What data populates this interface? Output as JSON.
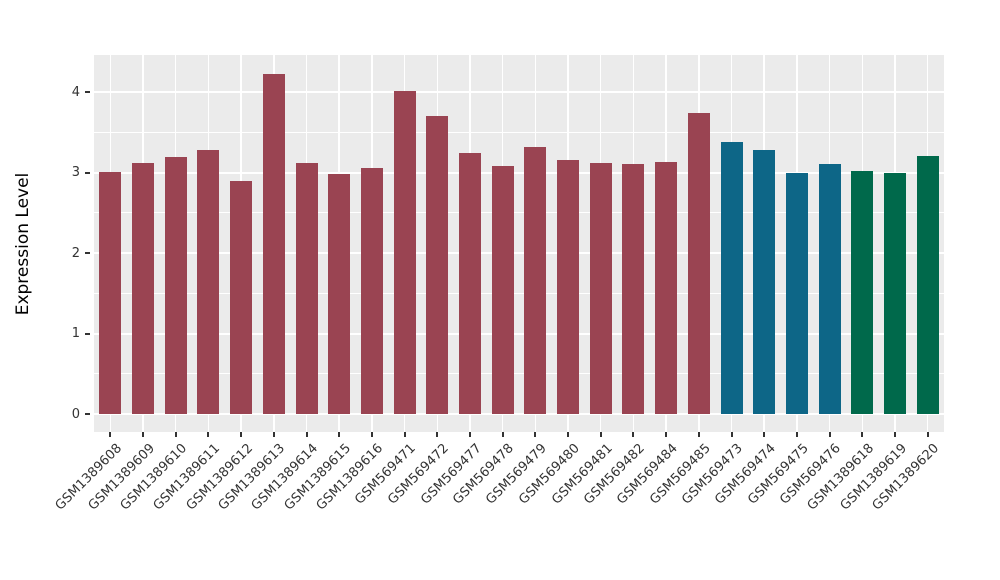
{
  "chart_data": {
    "type": "bar",
    "title": "",
    "xlabel": "",
    "ylabel": "Expression Level",
    "ylim": [
      0,
      4.46
    ],
    "yticks": [
      0,
      1,
      2,
      3,
      4
    ],
    "minor_gridlines": [
      0.5,
      1.5,
      2.5,
      3.5
    ],
    "grid": "on",
    "legend_position": "none",
    "panel_background": "#EBEBEB",
    "grid_color": "#FFFFFF",
    "axis_text_color": "#333333",
    "palette": {
      "group1": "#9A4452",
      "group2": "#0D6687",
      "group3": "#00694B"
    },
    "bars": [
      {
        "label": "GSM1389608",
        "value": 3.01,
        "group": "group1"
      },
      {
        "label": "GSM1389609",
        "value": 3.12,
        "group": "group1"
      },
      {
        "label": "GSM1389610",
        "value": 3.19,
        "group": "group1"
      },
      {
        "label": "GSM1389611",
        "value": 3.28,
        "group": "group1"
      },
      {
        "label": "GSM1389612",
        "value": 2.9,
        "group": "group1"
      },
      {
        "label": "GSM1389613",
        "value": 4.22,
        "group": "group1"
      },
      {
        "label": "GSM1389614",
        "value": 3.12,
        "group": "group1"
      },
      {
        "label": "GSM1389615",
        "value": 2.98,
        "group": "group1"
      },
      {
        "label": "GSM1389616",
        "value": 3.05,
        "group": "group1"
      },
      {
        "label": "GSM569471",
        "value": 4.01,
        "group": "group1"
      },
      {
        "label": "GSM569472",
        "value": 3.7,
        "group": "group1"
      },
      {
        "label": "GSM569477",
        "value": 3.24,
        "group": "group1"
      },
      {
        "label": "GSM569478",
        "value": 3.08,
        "group": "group1"
      },
      {
        "label": "GSM569479",
        "value": 3.32,
        "group": "group1"
      },
      {
        "label": "GSM569480",
        "value": 3.16,
        "group": "group1"
      },
      {
        "label": "GSM569481",
        "value": 3.12,
        "group": "group1"
      },
      {
        "label": "GSM569482",
        "value": 3.1,
        "group": "group1"
      },
      {
        "label": "GSM569484",
        "value": 3.13,
        "group": "group1"
      },
      {
        "label": "GSM569485",
        "value": 3.74,
        "group": "group1"
      },
      {
        "label": "GSM569473",
        "value": 3.38,
        "group": "group2"
      },
      {
        "label": "GSM569474",
        "value": 3.28,
        "group": "group2"
      },
      {
        "label": "GSM569475",
        "value": 3.0,
        "group": "group2"
      },
      {
        "label": "GSM569476",
        "value": 3.11,
        "group": "group2"
      },
      {
        "label": "GSM1389618",
        "value": 3.02,
        "group": "group3"
      },
      {
        "label": "GSM1389619",
        "value": 2.99,
        "group": "group3"
      },
      {
        "label": "GSM1389620",
        "value": 3.21,
        "group": "group3"
      }
    ]
  }
}
